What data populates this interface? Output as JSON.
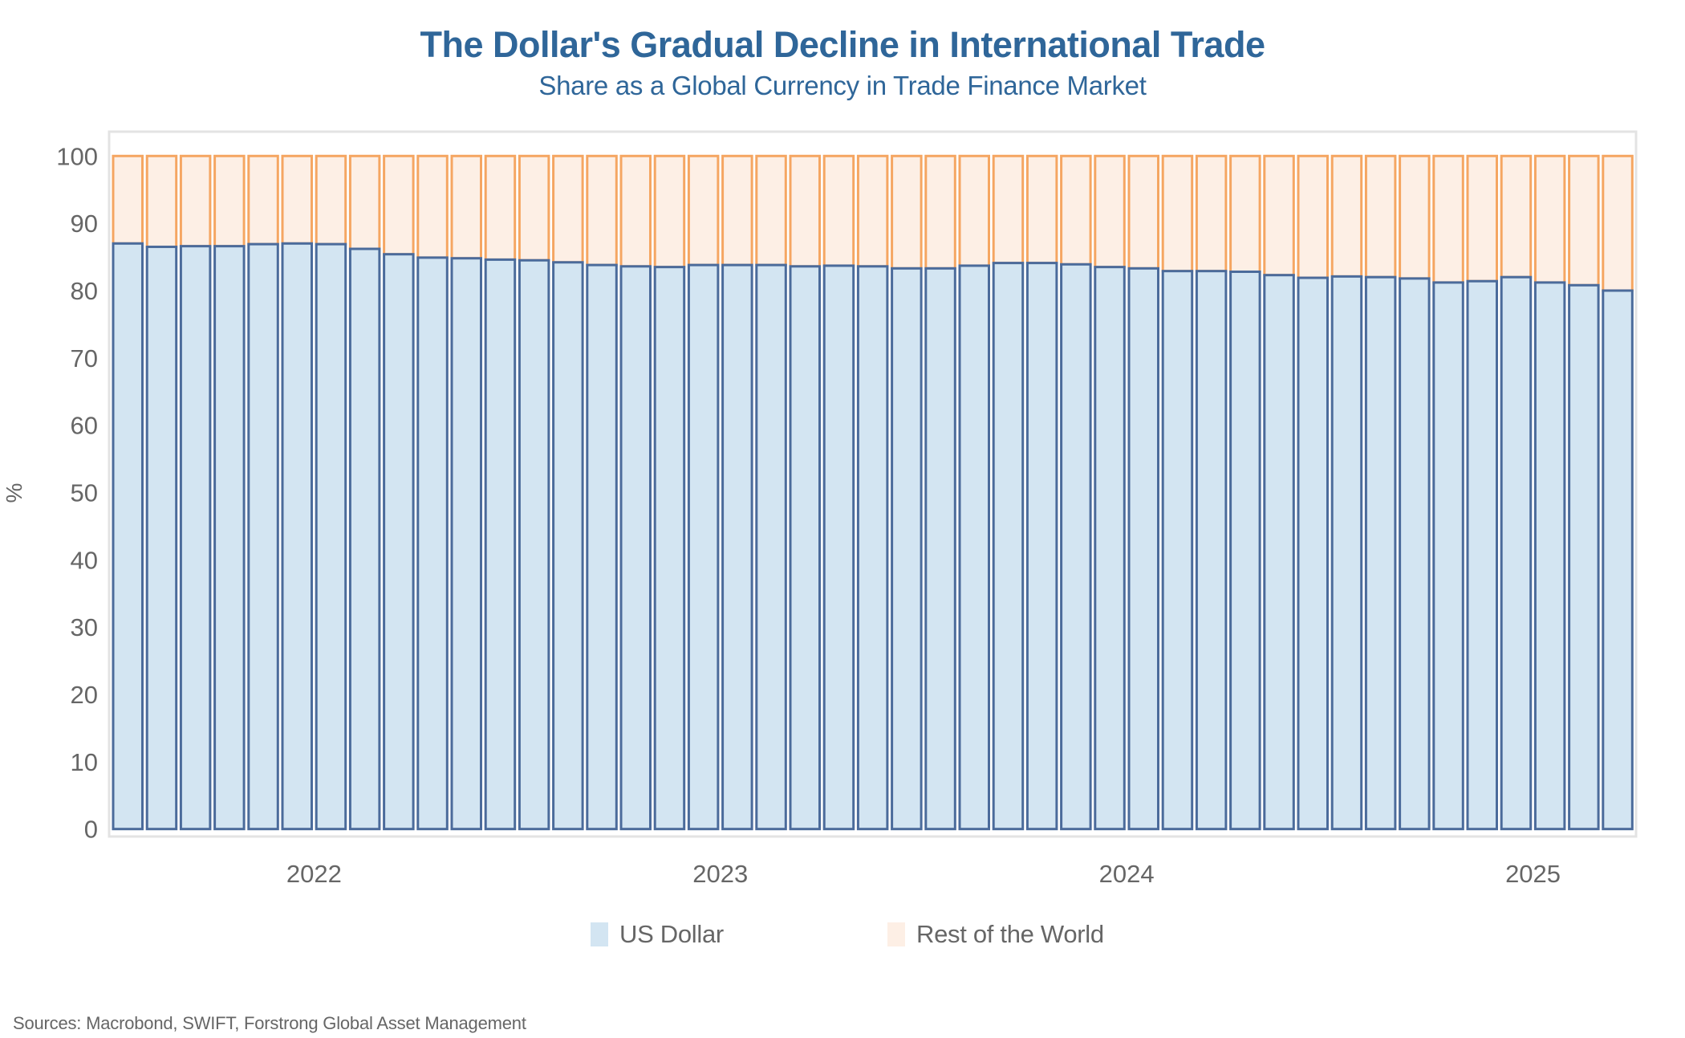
{
  "colors": {
    "title": "#2f6699",
    "us_dollar_fill": "#d3e5f2",
    "us_dollar_stroke": "#4b6b9b",
    "rest_fill": "#fdefe5",
    "rest_stroke": "#f5a662",
    "frame": "#e3e3e3",
    "tick_text": "#666666"
  },
  "source": "Sources: Macrobond, SWIFT, Forstrong Global Asset Management",
  "chart_data": {
    "type": "bar",
    "stacked": true,
    "title": "The Dollar's Gradual Decline in International Trade",
    "subtitle": "Share as a Global Currency in Trade Finance Market",
    "xlabel": "",
    "ylabel": "%",
    "ylim": [
      0,
      100
    ],
    "yticks": [
      "0",
      "10",
      "20",
      "30",
      "40",
      "50",
      "60",
      "70",
      "80",
      "90",
      "100"
    ],
    "ytick_values": [
      0,
      10,
      20,
      30,
      40,
      50,
      60,
      70,
      80,
      90,
      100
    ],
    "x_year_labels": [
      {
        "label": "2022",
        "center_index": 5.5
      },
      {
        "label": "2023",
        "center_index": 17.5
      },
      {
        "label": "2024",
        "center_index": 29.5
      },
      {
        "label": "2025",
        "center_index": 41.5
      }
    ],
    "categories_note": "monthly, Jan 2022 - Sep 2025",
    "legend_position": "bottom",
    "legend": [
      "US Dollar",
      "Rest of the World"
    ],
    "series": [
      {
        "name": "US Dollar",
        "values": [
          87.0,
          86.5,
          86.6,
          86.6,
          86.9,
          87.0,
          86.9,
          86.2,
          85.4,
          84.9,
          84.8,
          84.6,
          84.5,
          84.2,
          83.8,
          83.6,
          83.5,
          83.8,
          83.8,
          83.8,
          83.6,
          83.7,
          83.6,
          83.3,
          83.3,
          83.7,
          84.1,
          84.1,
          83.9,
          83.5,
          83.3,
          82.9,
          82.9,
          82.8,
          82.3,
          81.9,
          82.1,
          82.0,
          81.8,
          81.2,
          81.4,
          82.0,
          81.2,
          80.8,
          80.0
        ]
      },
      {
        "name": "Rest of the World",
        "values": [
          13.0,
          13.5,
          13.4,
          13.4,
          13.1,
          13.0,
          13.1,
          13.8,
          14.6,
          15.1,
          15.2,
          15.4,
          15.5,
          15.8,
          16.2,
          16.4,
          16.5,
          16.2,
          16.2,
          16.2,
          16.4,
          16.3,
          16.4,
          16.7,
          16.7,
          16.3,
          15.9,
          15.9,
          16.1,
          16.5,
          16.7,
          17.1,
          17.1,
          17.2,
          17.7,
          18.1,
          17.9,
          18.0,
          18.2,
          18.8,
          18.6,
          18.0,
          18.8,
          19.2,
          20.0
        ]
      }
    ]
  }
}
